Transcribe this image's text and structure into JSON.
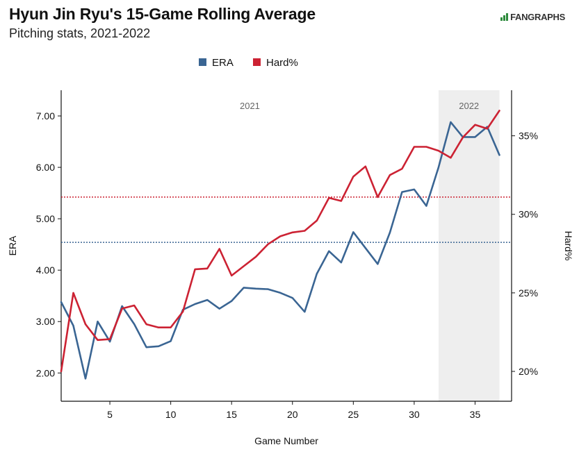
{
  "header": {
    "title": "Hyun Jin Ryu's 15-Game Rolling Average",
    "subtitle": "Pitching stats, 2021-2022",
    "brand": "FANGRAPHS"
  },
  "colors": {
    "era": "#3a6593",
    "hard": "#cc2233",
    "shade": "#eeeeee",
    "axis": "#111111"
  },
  "chart_data": {
    "type": "line",
    "xlabel": "Game Number",
    "ylabel_left": "ERA",
    "ylabel_right": "Hard%",
    "xlim": [
      1,
      38
    ],
    "ylim_left": [
      1.45,
      7.5
    ],
    "ylim_right": [
      18.1,
      37.9
    ],
    "x_ticks": [
      5,
      10,
      15,
      20,
      25,
      30,
      35
    ],
    "y_left_ticks": [
      2.0,
      3.0,
      4.0,
      5.0,
      6.0,
      7.0
    ],
    "y_left_tick_labels": [
      "2.00",
      "3.00",
      "4.00",
      "5.00",
      "6.00",
      "7.00"
    ],
    "y_right_ticks": [
      20,
      25,
      30,
      35
    ],
    "y_right_tick_labels": [
      "20%",
      "25%",
      "30%",
      "35%"
    ],
    "legend": {
      "position": "top-center",
      "entries": [
        "ERA",
        "Hard%"
      ]
    },
    "grid": false,
    "seasons": [
      {
        "label": "2021",
        "x_range": [
          1,
          32
        ],
        "shaded": false
      },
      {
        "label": "2022",
        "x_range": [
          32,
          37
        ],
        "shaded": true
      }
    ],
    "x": [
      1,
      2,
      3,
      4,
      5,
      6,
      7,
      8,
      9,
      10,
      11,
      12,
      13,
      14,
      15,
      16,
      17,
      18,
      19,
      20,
      21,
      22,
      23,
      24,
      25,
      26,
      27,
      28,
      29,
      30,
      31,
      32,
      33,
      34,
      35,
      36,
      37
    ],
    "series": [
      {
        "name": "ERA",
        "axis": "left",
        "values": [
          3.38,
          2.92,
          1.89,
          3.0,
          2.61,
          3.3,
          2.95,
          2.5,
          2.52,
          2.62,
          3.23,
          3.34,
          3.42,
          3.25,
          3.4,
          3.66,
          3.64,
          3.63,
          3.56,
          3.46,
          3.19,
          3.93,
          4.37,
          4.15,
          4.74,
          4.43,
          4.12,
          4.73,
          5.52,
          5.57,
          5.25,
          6.0,
          6.88,
          6.59,
          6.59,
          6.79,
          6.24
        ]
      },
      {
        "name": "Hard%",
        "axis": "right",
        "values": [
          20.0,
          25.0,
          23.0,
          22.0,
          22.05,
          24.0,
          24.2,
          23.0,
          22.8,
          22.8,
          23.8,
          26.5,
          26.55,
          27.8,
          26.1,
          26.7,
          27.3,
          28.1,
          28.6,
          28.85,
          28.95,
          29.6,
          31.05,
          30.85,
          32.4,
          33.05,
          31.1,
          32.5,
          32.9,
          34.3,
          34.3,
          34.05,
          33.6,
          34.9,
          35.7,
          35.45,
          36.6
        ]
      }
    ],
    "reference_lines": [
      {
        "series": "Hard%",
        "axis": "right",
        "value": 31.1,
        "style": "dotted"
      },
      {
        "series": "ERA",
        "axis": "left",
        "value": 4.54,
        "style": "dotted"
      }
    ]
  }
}
